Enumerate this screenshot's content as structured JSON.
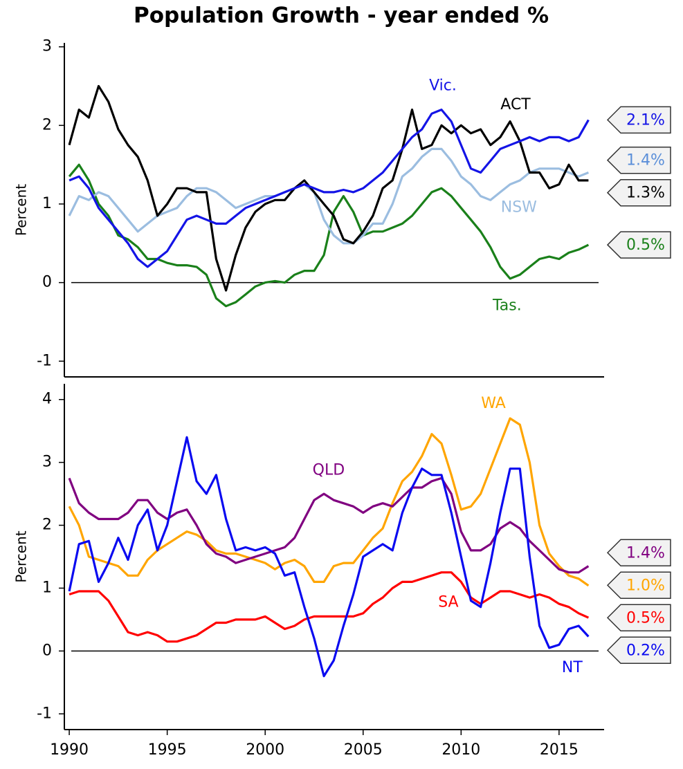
{
  "chart_data": [
    {
      "type": "line",
      "title": "Population Growth - year ended %",
      "ylabel": "Percent",
      "x": [
        1990,
        1990.5,
        1991,
        1991.5,
        1992,
        1992.5,
        1993,
        1993.5,
        1994,
        1994.5,
        1995,
        1995.5,
        1996,
        1996.5,
        1997,
        1997.5,
        1998,
        1998.5,
        1999,
        1999.5,
        2000,
        2000.5,
        2001,
        2001.5,
        2002,
        2002.5,
        2003,
        2003.5,
        2004,
        2004.5,
        2005,
        2005.5,
        2006,
        2006.5,
        2007,
        2007.5,
        2008,
        2008.5,
        2009,
        2009.5,
        2010,
        2010.5,
        2011,
        2011.5,
        2012,
        2012.5,
        2013,
        2013.5,
        2014,
        2014.5,
        2015,
        2015.5,
        2016,
        2016.5
      ],
      "xlim": [
        1989.75,
        2017.3
      ],
      "ylim": [
        -1.2,
        3.05
      ],
      "yticks": [
        -1,
        0,
        1,
        2,
        3
      ],
      "hline": 0,
      "series": [
        {
          "name": "Tas.",
          "color": "#1a801a",
          "end_label": "0.5%",
          "values": [
            1.35,
            1.5,
            1.3,
            1.0,
            0.85,
            0.6,
            0.55,
            0.45,
            0.3,
            0.3,
            0.25,
            0.22,
            0.22,
            0.2,
            0.1,
            -0.2,
            -0.3,
            -0.25,
            -0.15,
            -0.05,
            0.0,
            0.02,
            0.0,
            0.1,
            0.15,
            0.15,
            0.35,
            0.9,
            1.1,
            0.9,
            0.6,
            0.65,
            0.65,
            0.7,
            0.75,
            0.85,
            1.0,
            1.15,
            1.2,
            1.1,
            0.95,
            0.8,
            0.65,
            0.45,
            0.2,
            0.05,
            0.1,
            0.2,
            0.3,
            0.33,
            0.3,
            0.38,
            0.42,
            0.48
          ]
        },
        {
          "name": "NSW",
          "color": "#9bbde0",
          "end_label": "1.4%",
          "values": [
            0.85,
            1.1,
            1.05,
            1.15,
            1.1,
            0.95,
            0.8,
            0.65,
            0.75,
            0.85,
            0.9,
            0.95,
            1.1,
            1.2,
            1.2,
            1.15,
            1.05,
            0.95,
            1.0,
            1.05,
            1.1,
            1.1,
            1.15,
            1.2,
            1.25,
            1.15,
            0.8,
            0.6,
            0.5,
            0.5,
            0.6,
            0.75,
            0.75,
            1.0,
            1.35,
            1.45,
            1.6,
            1.7,
            1.7,
            1.55,
            1.35,
            1.25,
            1.1,
            1.05,
            1.15,
            1.25,
            1.3,
            1.4,
            1.45,
            1.45,
            1.45,
            1.4,
            1.35,
            1.4
          ]
        },
        {
          "name": "ACT",
          "color": "#000000",
          "end_label": "1.3%",
          "values": [
            1.75,
            2.2,
            2.1,
            2.5,
            2.3,
            1.95,
            1.75,
            1.6,
            1.3,
            0.85,
            1.0,
            1.2,
            1.2,
            1.15,
            1.15,
            0.3,
            -0.1,
            0.35,
            0.7,
            0.9,
            1.0,
            1.05,
            1.05,
            1.2,
            1.3,
            1.15,
            1.0,
            0.85,
            0.55,
            0.5,
            0.65,
            0.85,
            1.2,
            1.3,
            1.7,
            2.2,
            1.7,
            1.75,
            2.0,
            1.9,
            2.0,
            1.9,
            1.95,
            1.75,
            1.85,
            2.05,
            1.8,
            1.4,
            1.4,
            1.2,
            1.25,
            1.5,
            1.3,
            1.3
          ]
        },
        {
          "name": "Vic.",
          "color": "#1414e6",
          "end_label": "2.1%",
          "values": [
            1.3,
            1.35,
            1.2,
            0.95,
            0.8,
            0.65,
            0.5,
            0.3,
            0.2,
            0.3,
            0.4,
            0.6,
            0.8,
            0.85,
            0.8,
            0.75,
            0.75,
            0.85,
            0.95,
            1.0,
            1.05,
            1.1,
            1.15,
            1.2,
            1.25,
            1.2,
            1.15,
            1.15,
            1.18,
            1.15,
            1.2,
            1.3,
            1.4,
            1.55,
            1.7,
            1.85,
            1.95,
            2.15,
            2.2,
            2.05,
            1.75,
            1.45,
            1.4,
            1.55,
            1.7,
            1.75,
            1.8,
            1.85,
            1.8,
            1.85,
            1.85,
            1.8,
            1.85,
            2.07
          ]
        }
      ]
    },
    {
      "type": "line",
      "ylabel": "Percent",
      "x": [
        1990,
        1990.5,
        1991,
        1991.5,
        1992,
        1992.5,
        1993,
        1993.5,
        1994,
        1994.5,
        1995,
        1995.5,
        1996,
        1996.5,
        1997,
        1997.5,
        1998,
        1998.5,
        1999,
        1999.5,
        2000,
        2000.5,
        2001,
        2001.5,
        2002,
        2002.5,
        2003,
        2003.5,
        2004,
        2004.5,
        2005,
        2005.5,
        2006,
        2006.5,
        2007,
        2007.5,
        2008,
        2008.5,
        2009,
        2009.5,
        2010,
        2010.5,
        2011,
        2011.5,
        2012,
        2012.5,
        2013,
        2013.5,
        2014,
        2014.5,
        2015,
        2015.5,
        2016,
        2016.5
      ],
      "xlim": [
        1989.75,
        2017.3
      ],
      "xticks": [
        1990,
        1995,
        2000,
        2005,
        2010,
        2015
      ],
      "ylim": [
        -1.25,
        4.25
      ],
      "yticks": [
        -1,
        0,
        1,
        2,
        3,
        4
      ],
      "hline": 0,
      "series": [
        {
          "name": "SA",
          "color": "#ff0000",
          "end_label": "0.5%",
          "values": [
            0.9,
            0.95,
            0.95,
            0.95,
            0.8,
            0.55,
            0.3,
            0.25,
            0.3,
            0.25,
            0.15,
            0.15,
            0.2,
            0.25,
            0.35,
            0.45,
            0.45,
            0.5,
            0.5,
            0.5,
            0.55,
            0.45,
            0.35,
            0.4,
            0.5,
            0.55,
            0.55,
            0.55,
            0.55,
            0.55,
            0.6,
            0.75,
            0.85,
            1.0,
            1.1,
            1.1,
            1.15,
            1.2,
            1.25,
            1.25,
            1.1,
            0.85,
            0.75,
            0.85,
            0.95,
            0.95,
            0.9,
            0.85,
            0.9,
            0.85,
            0.75,
            0.7,
            0.6,
            0.53
          ]
        },
        {
          "name": "WA",
          "color": "#ffa500",
          "end_label": "1.0%",
          "values": [
            2.3,
            2.0,
            1.5,
            1.45,
            1.4,
            1.35,
            1.2,
            1.2,
            1.45,
            1.6,
            1.7,
            1.8,
            1.9,
            1.85,
            1.75,
            1.6,
            1.55,
            1.55,
            1.5,
            1.45,
            1.4,
            1.3,
            1.4,
            1.45,
            1.35,
            1.1,
            1.1,
            1.35,
            1.4,
            1.4,
            1.6,
            1.8,
            1.95,
            2.35,
            2.7,
            2.85,
            3.1,
            3.45,
            3.3,
            2.8,
            2.25,
            2.3,
            2.5,
            2.9,
            3.3,
            3.7,
            3.6,
            3.0,
            2.0,
            1.55,
            1.35,
            1.2,
            1.15,
            1.04
          ]
        },
        {
          "name": "QLD",
          "color": "#800080",
          "end_label": "1.4%",
          "values": [
            2.75,
            2.35,
            2.2,
            2.1,
            2.1,
            2.1,
            2.2,
            2.4,
            2.4,
            2.2,
            2.1,
            2.2,
            2.25,
            2.0,
            1.7,
            1.55,
            1.5,
            1.4,
            1.45,
            1.5,
            1.55,
            1.6,
            1.65,
            1.8,
            2.1,
            2.4,
            2.5,
            2.4,
            2.35,
            2.3,
            2.2,
            2.3,
            2.35,
            2.3,
            2.45,
            2.6,
            2.6,
            2.7,
            2.75,
            2.5,
            1.9,
            1.6,
            1.6,
            1.7,
            1.95,
            2.05,
            1.95,
            1.75,
            1.6,
            1.45,
            1.3,
            1.25,
            1.25,
            1.35
          ]
        },
        {
          "name": "NT",
          "color": "#0a0af0",
          "end_label": "0.2%",
          "values": [
            0.95,
            1.7,
            1.75,
            1.1,
            1.4,
            1.8,
            1.45,
            2.0,
            2.25,
            1.6,
            2.0,
            2.7,
            3.4,
            2.7,
            2.5,
            2.8,
            2.1,
            1.6,
            1.65,
            1.6,
            1.65,
            1.55,
            1.2,
            1.25,
            0.7,
            0.2,
            -0.4,
            -0.15,
            0.4,
            0.9,
            1.5,
            1.6,
            1.7,
            1.6,
            2.2,
            2.6,
            2.9,
            2.8,
            2.8,
            2.2,
            1.5,
            0.8,
            0.7,
            1.4,
            2.2,
            2.9,
            2.9,
            1.5,
            0.4,
            0.05,
            0.1,
            0.35,
            0.4,
            0.23
          ]
        }
      ]
    }
  ]
}
